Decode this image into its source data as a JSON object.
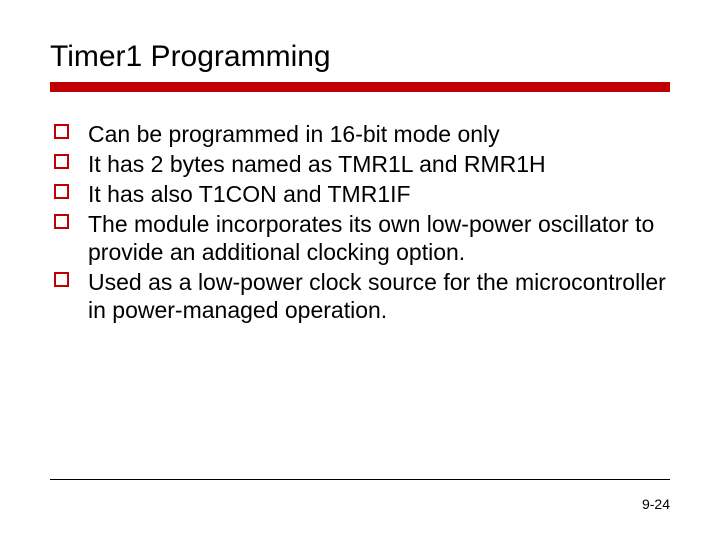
{
  "slide": {
    "title": "Timer1 Programming",
    "bullets": [
      "Can be programmed in 16-bit mode only",
      "It has 2 bytes named as TMR1L and RMR1H",
      "It has also T1CON and TMR1IF",
      "The module incorporates its own low-power oscillator to provide an additional clocking option.",
      "Used as a low-power clock source for the microcontroller in power-managed operation."
    ],
    "page_number": "9-24"
  },
  "style": {
    "accent_color": "#c00000",
    "background_color": "#ffffff",
    "text_color": "#000000",
    "title_fontsize": 30,
    "body_fontsize": 23,
    "footer_fontsize": 14,
    "accent_bar_height": 10,
    "bullet_marker_size": 15,
    "bullet_marker_border": 2
  }
}
